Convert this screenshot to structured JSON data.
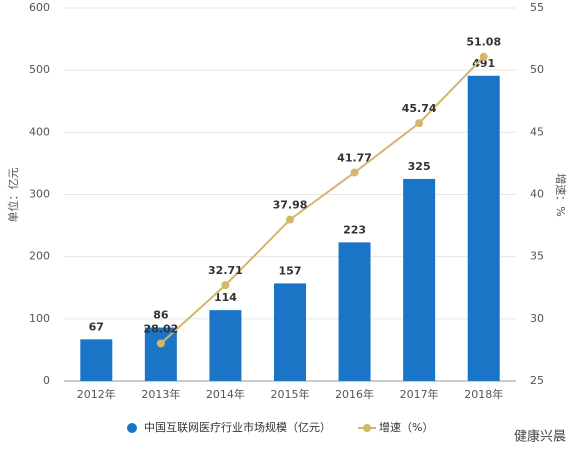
{
  "chart_data": {
    "type": "bar",
    "categories": [
      "2012年",
      "2013年",
      "2014年",
      "2015年",
      "2016年",
      "2017年",
      "2018年"
    ],
    "series": [
      {
        "name": "中国互联网医疗行业市场规模（亿元）",
        "type": "bar",
        "color": "#1a75c6",
        "values": [
          67,
          86,
          114,
          157,
          223,
          325,
          491
        ]
      },
      {
        "name": "增速（%）",
        "type": "line",
        "axis": "y2",
        "color": "#d4b56a",
        "values": [
          null,
          28.02,
          32.71,
          37.98,
          41.77,
          45.74,
          51.08
        ]
      }
    ],
    "ylabel": "单位：亿元",
    "y2label": "增速：%",
    "ylim": [
      0,
      600
    ],
    "yticks": [
      0,
      100,
      200,
      300,
      400,
      500,
      600
    ],
    "y2lim": [
      25,
      55
    ],
    "y2ticks": [
      25,
      30,
      35,
      40,
      45,
      50,
      55
    ],
    "grid": true,
    "legend": "bottom",
    "annotation": "健康兴晨"
  }
}
